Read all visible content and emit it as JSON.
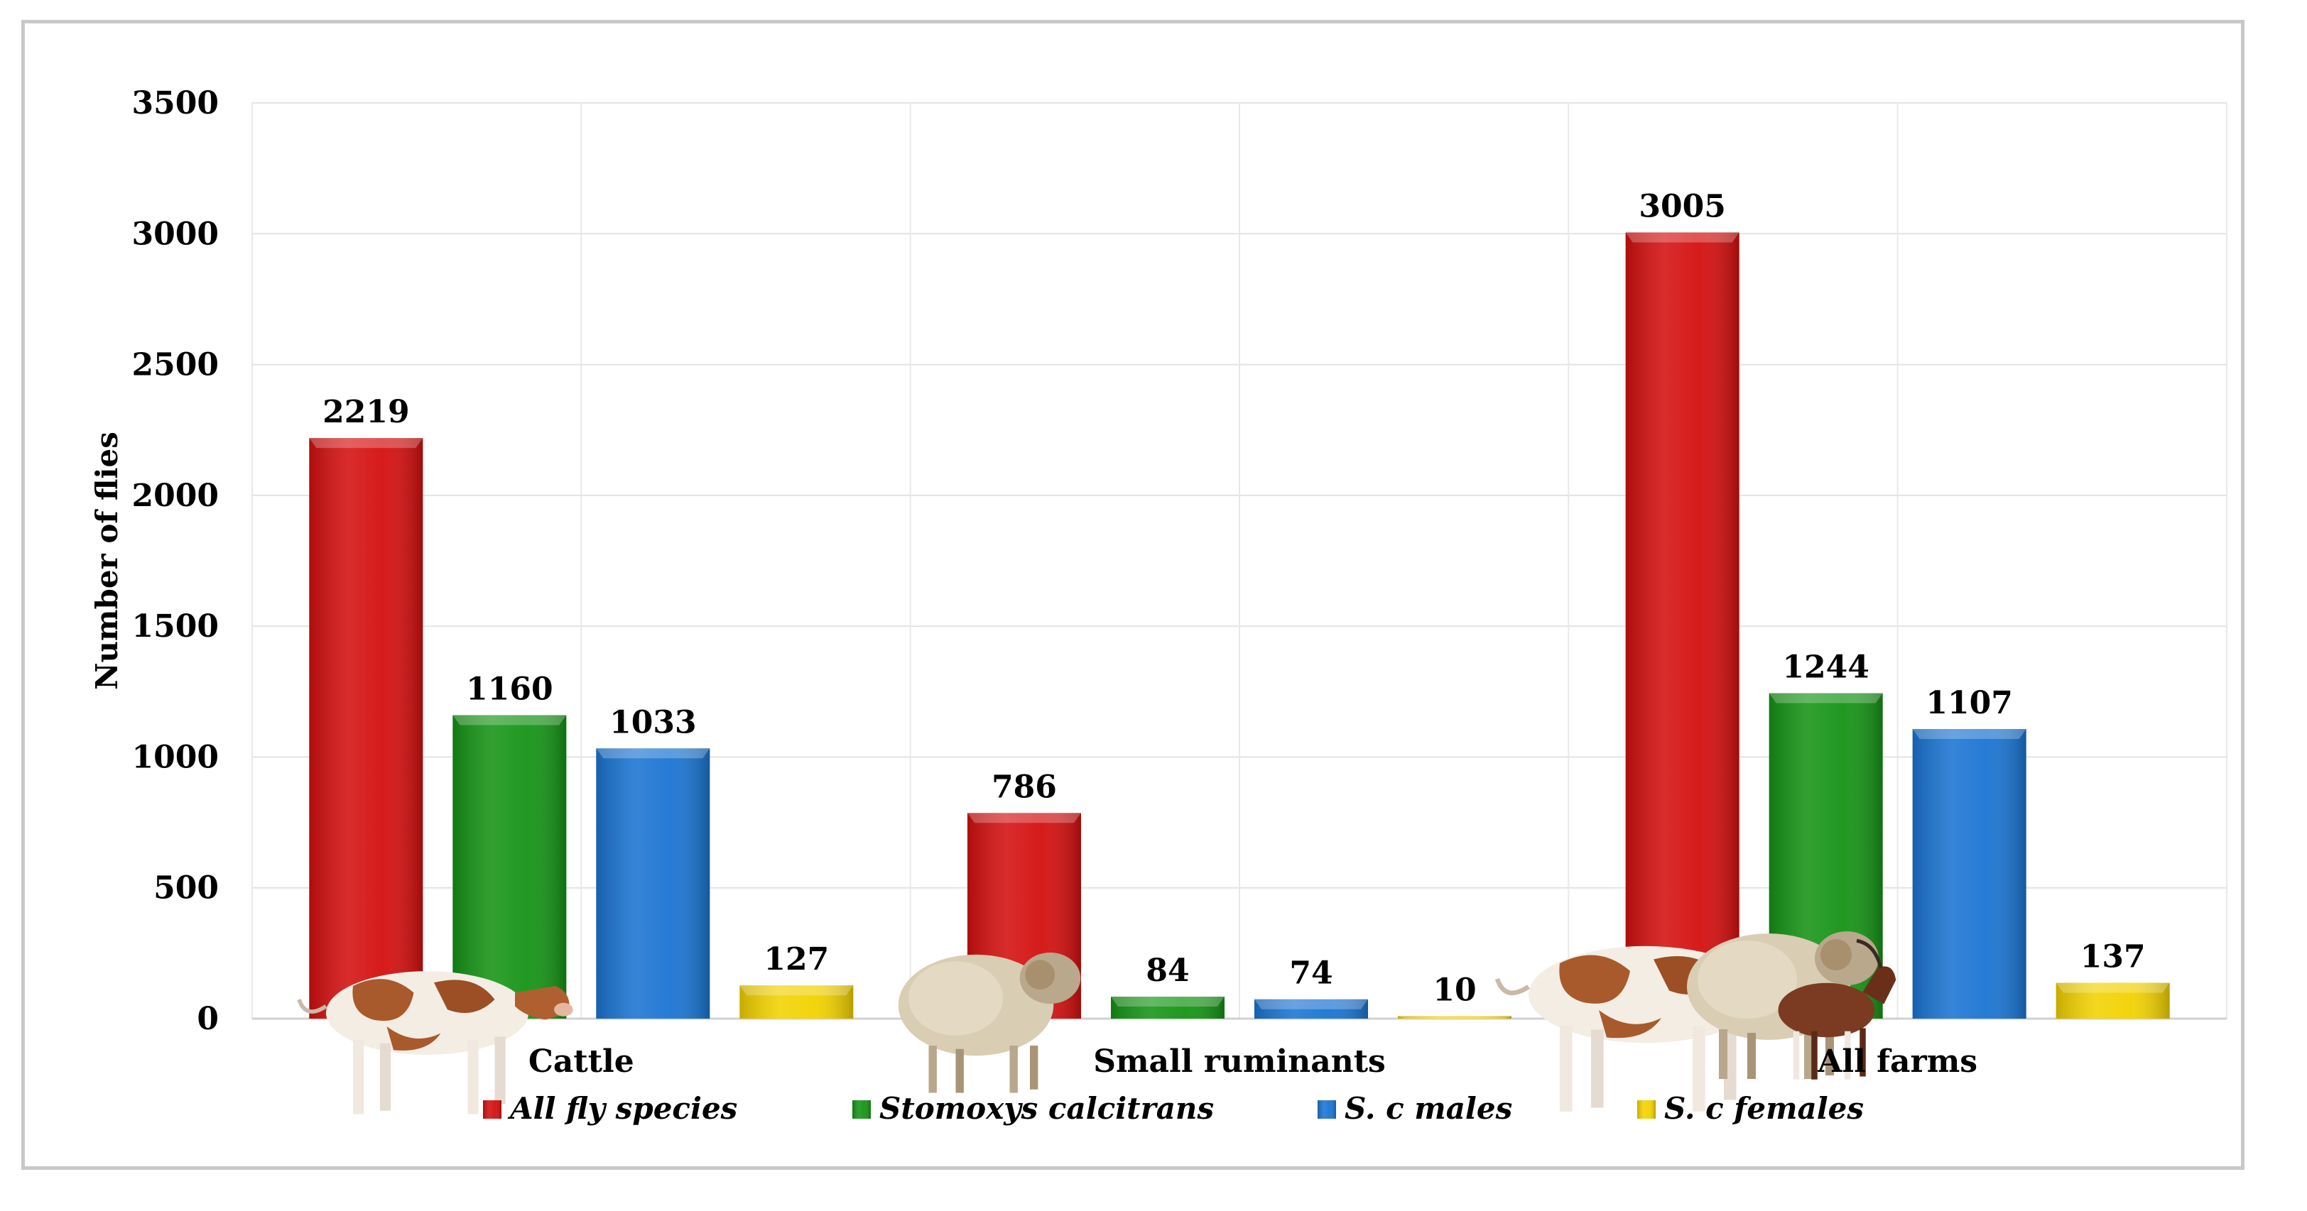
{
  "chart_data": {
    "type": "bar",
    "categories": [
      "Cattle",
      "Small ruminants",
      "All farms"
    ],
    "series": [
      {
        "name": "All fly species",
        "values": [
          2219,
          786,
          3005
        ],
        "color": "#d40f0f"
      },
      {
        "name": "Stomoxys calcitrans",
        "values": [
          1160,
          84,
          1244
        ],
        "color": "#159315"
      },
      {
        "name": "S. c males",
        "values": [
          1033,
          74,
          1107
        ],
        "color": "#1a74d2"
      },
      {
        "name": "S. c females",
        "values": [
          127,
          10,
          137
        ],
        "color": "#f2d200"
      }
    ],
    "ylabel": "Number of flies",
    "ylim": [
      0,
      3500
    ],
    "yticks": [
      0,
      500,
      1000,
      1500,
      2000,
      2500,
      3000,
      3500
    ],
    "grid": true,
    "legend_position": "bottom"
  },
  "animals": [
    "cow",
    "sheep",
    "cow",
    "sheep",
    "goat"
  ]
}
